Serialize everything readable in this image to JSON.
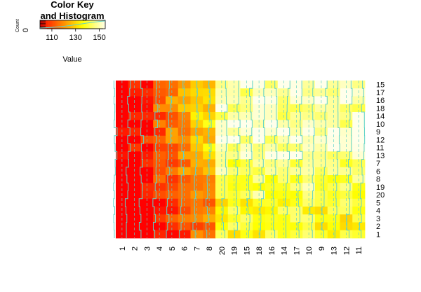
{
  "chart_data": {
    "type": "heatmap",
    "color_key": {
      "title_line1": "Color Key",
      "title_line2": "and Histogram",
      "xlabel": "Value",
      "ylabel": "Count",
      "y_ticks": [
        "0"
      ],
      "x_ticks": [
        110,
        130,
        150
      ],
      "range": [
        100,
        155
      ],
      "colors": [
        "#ff0000",
        "#ff3300",
        "#ff6600",
        "#ff9900",
        "#ffcc00",
        "#ffff00",
        "#ffff66",
        "#ffffcc"
      ]
    },
    "x_categories": [
      "1",
      "2",
      "3",
      "4",
      "5",
      "6",
      "7",
      "8",
      "20",
      "19",
      "15",
      "18",
      "16",
      "14",
      "17",
      "10",
      "9",
      "13",
      "12",
      "11"
    ],
    "y_categories_top_to_bottom": [
      "15",
      "17",
      "16",
      "18",
      "14",
      "10",
      "9",
      "12",
      "11",
      "13",
      "7",
      "6",
      "8",
      "19",
      "20",
      "5",
      "4",
      "3",
      "2",
      "1"
    ],
    "value_range": [
      100,
      155
    ],
    "trace_color": "#5fd3c8",
    "colors": {
      "low": "#ff0000",
      "mid": "#ffff00",
      "high": "#ffffe0"
    }
  }
}
